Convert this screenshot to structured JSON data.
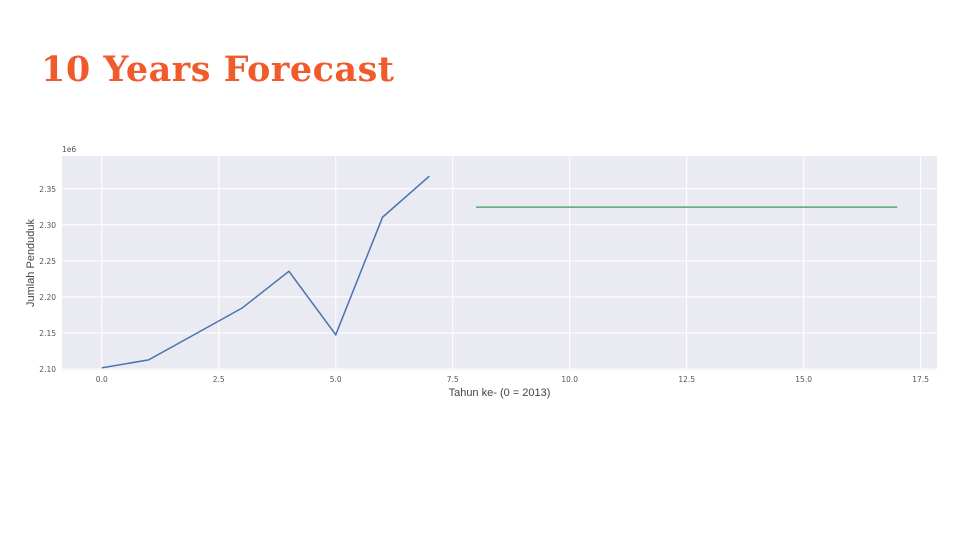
{
  "slide": {
    "title": "10 Years Forecast",
    "title_color": "#f15a2b"
  },
  "chart_data": {
    "type": "line",
    "title": "",
    "xlabel": "Tahun ke- (0 = 2013)",
    "ylabel": "Jumlah Penduduk",
    "y_offset_label": "1e6",
    "xlim": [
      -0.85,
      17.85
    ],
    "ylim": [
      2.0985,
      2.3955
    ],
    "x_ticks": [
      "0.0",
      "2.5",
      "5.0",
      "7.5",
      "10.0",
      "12.5",
      "15.0",
      "17.5"
    ],
    "y_ticks": [
      "2.10",
      "2.15",
      "2.20",
      "2.25",
      "2.30",
      "2.35"
    ],
    "grid": true,
    "background": "#eaeaf2",
    "series": [
      {
        "color": "#4c72b0",
        "x": [
          0,
          1,
          2,
          3,
          4,
          5,
          6,
          7
        ],
        "y": [
          2.1015,
          2.1125,
          2.1485,
          2.1845,
          2.2355,
          2.1475,
          2.3105,
          2.3675
        ]
      },
      {
        "color": "#55a868",
        "x": [
          8,
          9,
          10,
          11,
          12,
          13,
          14,
          15,
          16,
          17
        ],
        "y": [
          2.3245,
          2.3245,
          2.3245,
          2.3245,
          2.3245,
          2.3245,
          2.3245,
          2.3245,
          2.3245,
          2.3245
        ]
      }
    ]
  }
}
